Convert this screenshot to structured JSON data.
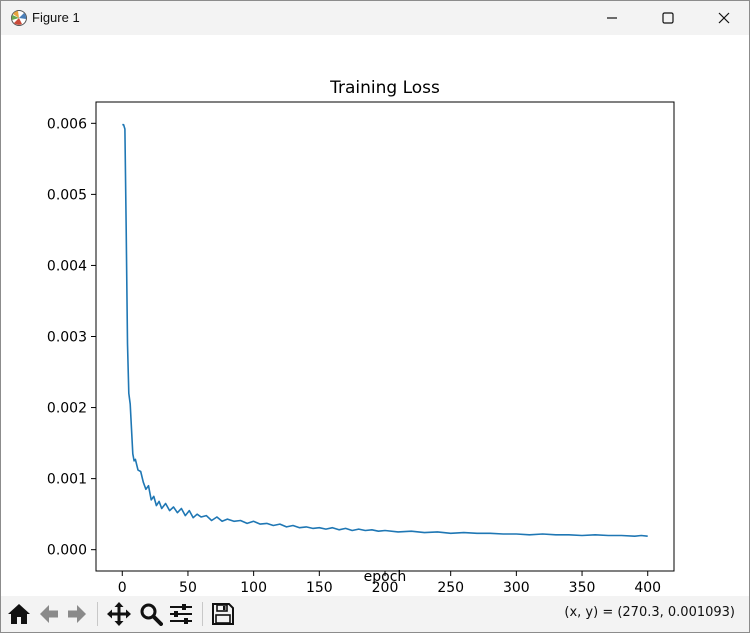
{
  "window": {
    "title": "Figure 1",
    "icons": [
      "matplotlib-icon",
      "minimize-icon",
      "maximize-icon",
      "close-icon"
    ]
  },
  "toolbar": {
    "buttons": [
      "home-icon",
      "back-icon",
      "forward-icon",
      "pan-icon",
      "zoom-icon",
      "configure-subplots-icon",
      "save-icon"
    ],
    "coordinates": "(x, y) = (270.3, 0.001093)"
  },
  "colors": {
    "line": "#1f77b4",
    "titlebar": "#f3f3f3"
  },
  "chart_data": {
    "type": "line",
    "title": "Training Loss",
    "xlabel": "epoch",
    "ylabel": "",
    "xlim": [
      -20,
      420
    ],
    "ylim": [
      -0.0003,
      0.0063
    ],
    "xticks": [
      0,
      50,
      100,
      150,
      200,
      250,
      300,
      350,
      400
    ],
    "xtick_labels": [
      "0",
      "50",
      "100",
      "150",
      "200",
      "250",
      "300",
      "350",
      "400"
    ],
    "yticks": [
      0.0,
      0.001,
      0.002,
      0.003,
      0.004,
      0.005,
      0.006
    ],
    "ytick_labels": [
      "0.000",
      "0.001",
      "0.002",
      "0.003",
      "0.004",
      "0.005",
      "0.006"
    ],
    "grid": false,
    "legend": null,
    "series": [
      {
        "x": [
          0,
          1,
          2,
          3,
          4,
          5,
          6,
          7,
          8,
          9,
          10,
          12,
          14,
          16,
          18,
          20,
          22,
          24,
          26,
          28,
          30,
          33,
          36,
          39,
          42,
          45,
          48,
          51,
          54,
          57,
          60,
          64,
          68,
          72,
          76,
          80,
          85,
          90,
          95,
          100,
          105,
          110,
          115,
          120,
          125,
          130,
          135,
          140,
          145,
          150,
          155,
          160,
          165,
          170,
          175,
          180,
          185,
          190,
          195,
          200,
          210,
          220,
          230,
          240,
          250,
          260,
          270,
          280,
          290,
          300,
          310,
          320,
          330,
          340,
          350,
          360,
          370,
          380,
          390,
          395,
          400
        ],
        "y": [
          0.00598,
          0.00598,
          0.00592,
          0.0045,
          0.0029,
          0.0022,
          0.00205,
          0.0017,
          0.00135,
          0.00125,
          0.00127,
          0.00112,
          0.0011,
          0.00095,
          0.00085,
          0.0009,
          0.0007,
          0.00075,
          0.00062,
          0.00068,
          0.00058,
          0.00065,
          0.00055,
          0.0006,
          0.00052,
          0.00058,
          0.00048,
          0.00055,
          0.00045,
          0.0005,
          0.00046,
          0.00048,
          0.00041,
          0.00046,
          0.0004,
          0.00043,
          0.0004,
          0.00041,
          0.00037,
          0.0004,
          0.00036,
          0.00037,
          0.00034,
          0.00036,
          0.00032,
          0.00034,
          0.00031,
          0.00032,
          0.0003,
          0.00031,
          0.00029,
          0.00031,
          0.00028,
          0.0003,
          0.00027,
          0.00029,
          0.00027,
          0.00028,
          0.00026,
          0.00027,
          0.00025,
          0.00026,
          0.00024,
          0.00025,
          0.00023,
          0.00024,
          0.00023,
          0.00023,
          0.00022,
          0.00022,
          0.00021,
          0.00022,
          0.00021,
          0.00021,
          0.0002,
          0.00021,
          0.0002,
          0.0002,
          0.00019,
          0.0002,
          0.00019
        ]
      }
    ]
  }
}
